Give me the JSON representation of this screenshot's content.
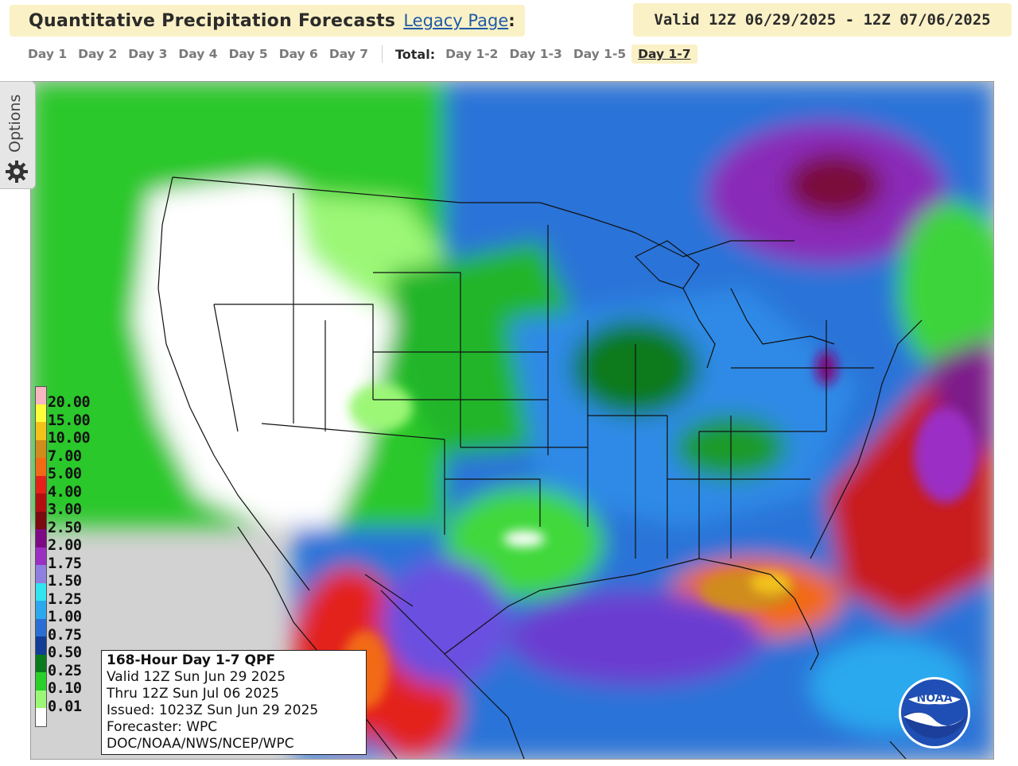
{
  "header": {
    "title": "Quantitative Precipitation Forecasts",
    "legacy_link": "Legacy Page",
    "legacy_colon": ":",
    "valid_range": "Valid 12Z 06/29/2025 - 12Z 07/06/2025"
  },
  "nav": {
    "day_tabs": [
      "Day 1",
      "Day 2",
      "Day 3",
      "Day 4",
      "Day 5",
      "Day 6",
      "Day 7"
    ],
    "total_label": "Total:",
    "total_tabs": [
      "Day 1-2",
      "Day 1-3",
      "Day 1-5",
      "Day 1-7"
    ],
    "active_tab": "Day 1-7"
  },
  "options": {
    "label": "Options",
    "icon": "gear-icon"
  },
  "legend": {
    "items": [
      {
        "label": "20.00",
        "color": "#f7b6c2"
      },
      {
        "label": "15.00",
        "color": "#ffff3b"
      },
      {
        "label": "10.00",
        "color": "#f2c21a"
      },
      {
        "label": "7.00",
        "color": "#d08c1d"
      },
      {
        "label": "5.00",
        "color": "#f26a16"
      },
      {
        "label": "4.00",
        "color": "#e3221b"
      },
      {
        "label": "3.00",
        "color": "#b30f13"
      },
      {
        "label": "2.50",
        "color": "#7a0b10"
      },
      {
        "label": "2.00",
        "color": "#7d0a84"
      },
      {
        "label": "1.75",
        "color": "#9b2fc4"
      },
      {
        "label": "1.50",
        "color": "#8f7fe0"
      },
      {
        "label": "1.25",
        "color": "#31e4f0"
      },
      {
        "label": "1.00",
        "color": "#2ca9ee"
      },
      {
        "label": "0.75",
        "color": "#2a6ed3"
      },
      {
        "label": "0.50",
        "color": "#123d94"
      },
      {
        "label": "0.25",
        "color": "#0a7a1e"
      },
      {
        "label": "0.10",
        "color": "#2ad02a"
      },
      {
        "label": "0.01",
        "color": "#9cf777"
      }
    ],
    "bottom_color": "#ffffff"
  },
  "info": {
    "title": "168-Hour Day 1-7 QPF",
    "lines": [
      "Valid 12Z Sun Jun 29 2025",
      "Thru 12Z Sun Jul 06 2025",
      "Issued: 1023Z Sun Jun 29 2025",
      "Forecaster: WPC",
      "DOC/NOAA/NWS/NCEP/WPC"
    ]
  },
  "logo": {
    "text": "NOAA"
  }
}
